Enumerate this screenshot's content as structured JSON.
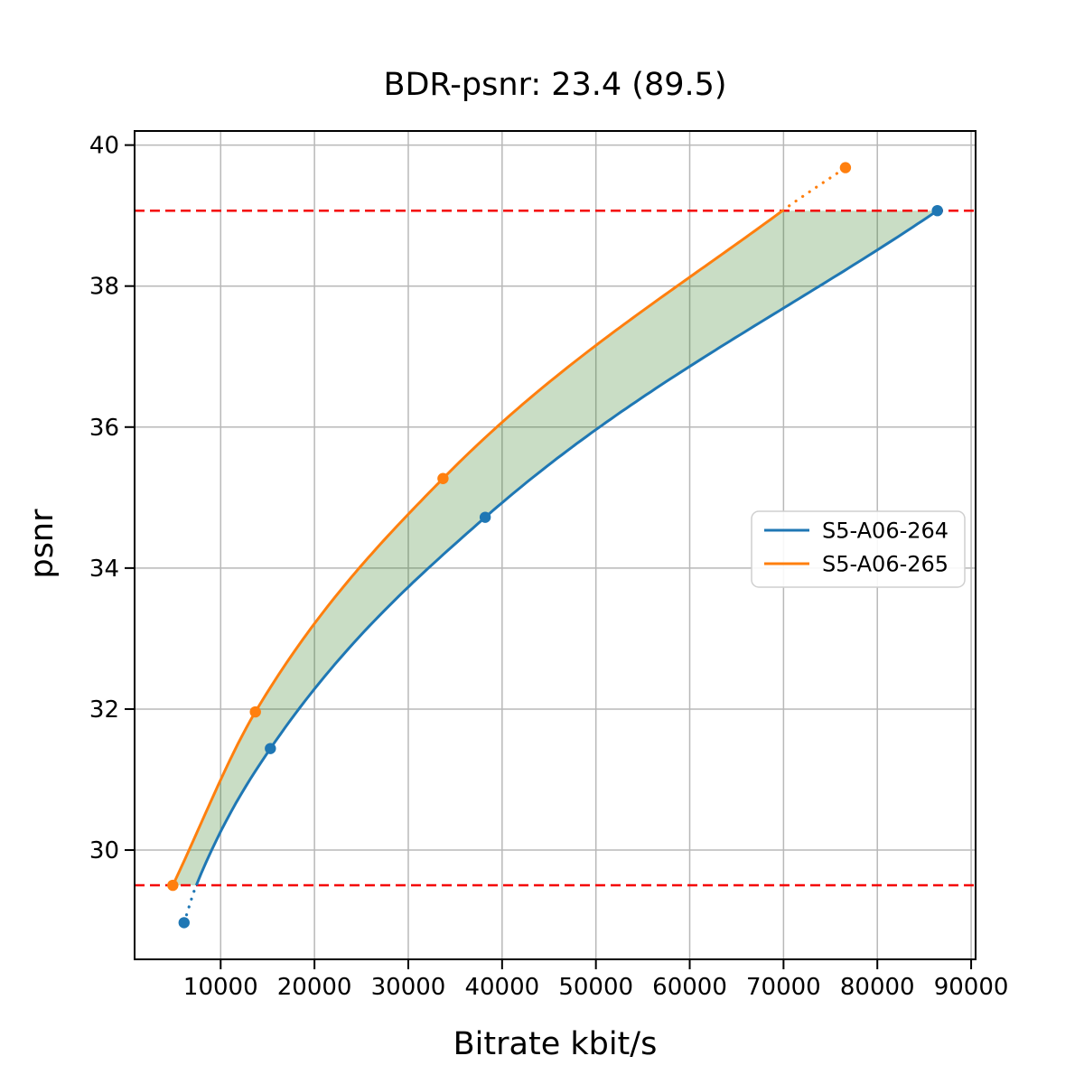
{
  "chart_data": {
    "type": "line",
    "title": "BDR-psnr: 23.4 (89.5)",
    "xlabel": "Bitrate kbit/s",
    "ylabel": "psnr",
    "xlim": [
      825,
      90475
    ],
    "ylim": [
      28.45,
      40.2
    ],
    "x_ticks": [
      10000,
      20000,
      30000,
      40000,
      50000,
      60000,
      70000,
      80000,
      90000
    ],
    "y_ticks": [
      30,
      32,
      34,
      36,
      38,
      40
    ],
    "grid": true,
    "grid_color": "#b8b8b8",
    "text_color": "#000000",
    "spine_color": "#000000",
    "series": [
      {
        "name": "S5-A06-264",
        "color": "#1f77b4",
        "data_points": [
          [
            6100,
            28.97
          ],
          [
            15300,
            31.44
          ],
          [
            38200,
            34.72
          ],
          [
            86400,
            39.07
          ]
        ],
        "curve_knots": [
          [
            6100,
            28.97
          ],
          [
            7400,
            29.5
          ],
          [
            15300,
            31.44
          ],
          [
            38200,
            34.72
          ],
          [
            86400,
            39.07
          ]
        ],
        "solid_x_range": [
          7400,
          86400
        ],
        "dotted_x_range": [
          6100,
          7400
        ]
      },
      {
        "name": "S5-A06-265",
        "color": "#ff7f0e",
        "data_points": [
          [
            4900,
            29.5
          ],
          [
            13700,
            31.96
          ],
          [
            33700,
            35.27
          ],
          [
            76600,
            39.68
          ]
        ],
        "curve_knots": [
          [
            4900,
            29.5
          ],
          [
            13700,
            31.96
          ],
          [
            33700,
            35.27
          ],
          [
            69900,
            39.07
          ],
          [
            76600,
            39.68
          ]
        ],
        "solid_x_range": [
          4900,
          69900
        ],
        "dotted_x_range": [
          69900,
          76600
        ]
      }
    ],
    "bd_bounds": {
      "lower_psnr": 29.5,
      "upper_psnr": 39.07,
      "line_color": "#f40000",
      "line_style": "dashed"
    },
    "shaded_region": {
      "between": [
        "S5-A06-265",
        "S5-A06-264"
      ],
      "upper_corner_x": 86400,
      "color": "rgba(40,120,25,0.25)"
    },
    "legend": {
      "position": "center right",
      "entries": [
        {
          "label": "S5-A06-264",
          "color": "#1f77b4"
        },
        {
          "label": "S5-A06-265",
          "color": "#ff7f0e"
        }
      ]
    }
  }
}
